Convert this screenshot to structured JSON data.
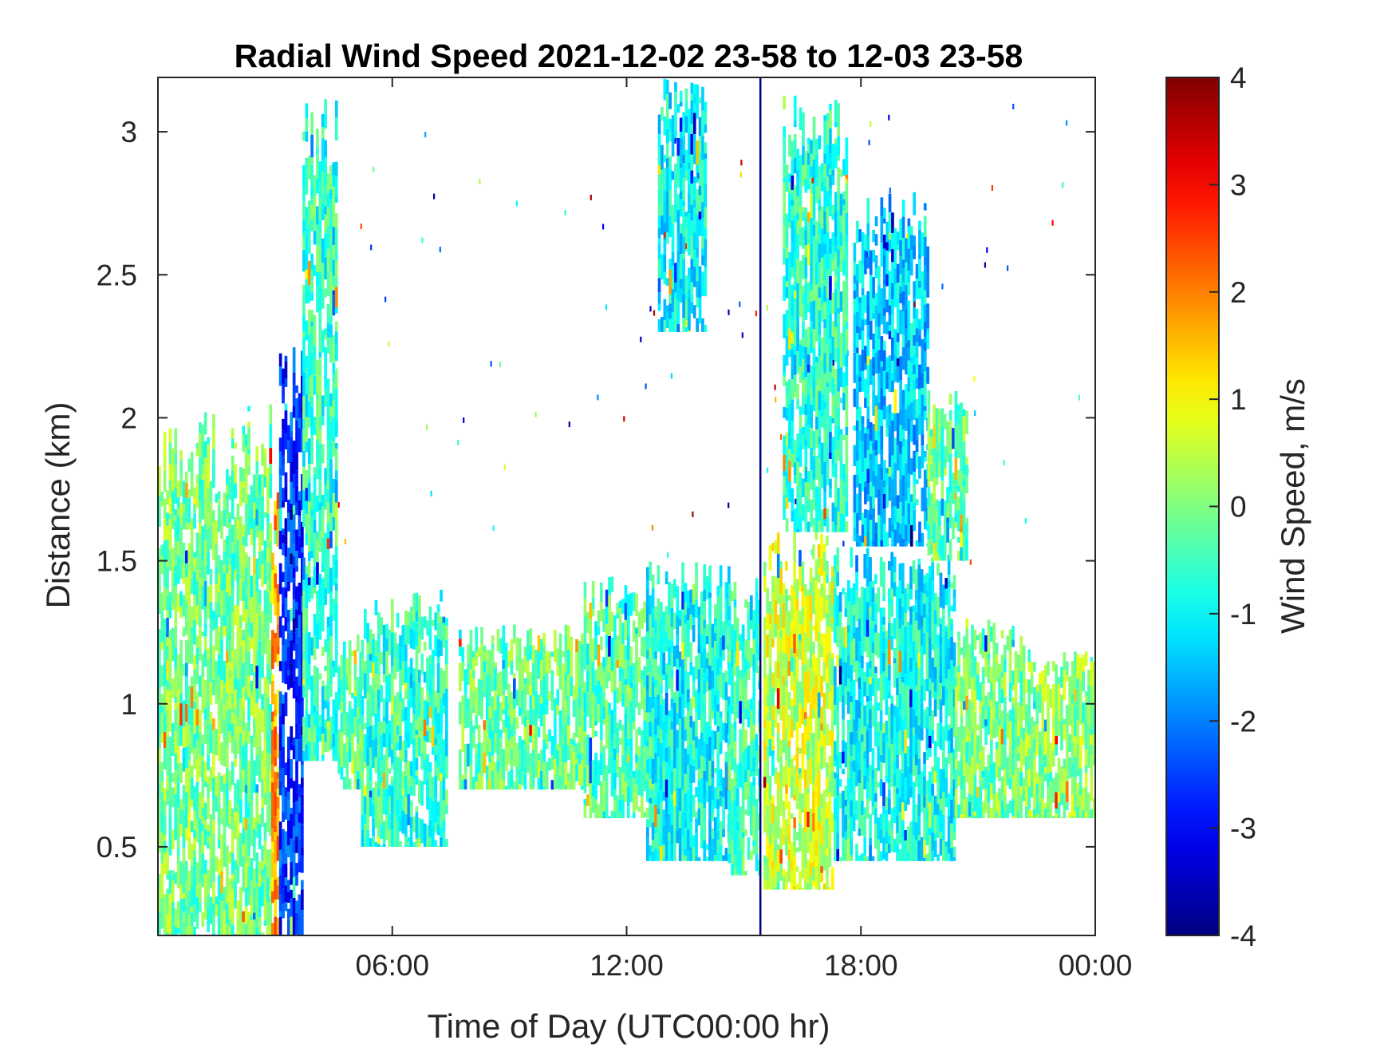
{
  "chart_data": {
    "type": "heatmap",
    "title": "Radial Wind Speed 2021-12-02 23-58 to 12-03 23-58",
    "xlabel": "Time of Day (UTC00:00 hr)",
    "ylabel": "Distance (km)",
    "colorbar_label": "Wind Speed, m/s",
    "colormap": "jet",
    "xlim": [
      "2021-12-02 23:58",
      "2021-12-03 23:58"
    ],
    "xlim_hours": [
      0,
      24
    ],
    "ylim": [
      0.19,
      3.19
    ],
    "clim": [
      -4,
      4
    ],
    "x_ticks": [
      {
        "hour": 6,
        "label": "06:00"
      },
      {
        "hour": 12,
        "label": "12:00"
      },
      {
        "hour": 18,
        "label": "18:00"
      },
      {
        "hour": 24,
        "label": "00:00"
      }
    ],
    "y_ticks": [
      {
        "value": 0.5,
        "label": "0.5"
      },
      {
        "value": 1,
        "label": "1"
      },
      {
        "value": 1.5,
        "label": "1.5"
      },
      {
        "value": 2,
        "label": "2"
      },
      {
        "value": 2.5,
        "label": "2.5"
      },
      {
        "value": 3,
        "label": "3"
      }
    ],
    "colorbar_ticks": [
      {
        "value": 4,
        "label": "4"
      },
      {
        "value": 3,
        "label": "3"
      },
      {
        "value": 2,
        "label": "2"
      },
      {
        "value": 1,
        "label": "1"
      },
      {
        "value": 0,
        "label": "0"
      },
      {
        "value": -1,
        "label": "-1"
      },
      {
        "value": -2,
        "label": "-2"
      },
      {
        "value": -3,
        "label": "-3"
      },
      {
        "value": -4,
        "label": "-4"
      }
    ],
    "regions": [
      {
        "t": [
          0.0,
          2.9
        ],
        "d": [
          0.19,
          2.05
        ],
        "v": -0.1
      },
      {
        "t": [
          2.9,
          3.1
        ],
        "d": [
          0.19,
          1.75
        ],
        "v": 1.8
      },
      {
        "t": [
          3.1,
          3.7
        ],
        "d": [
          0.19,
          2.3
        ],
        "v": -2.6
      },
      {
        "t": [
          3.7,
          4.6
        ],
        "d": [
          0.8,
          3.19
        ],
        "v": -0.6
      },
      {
        "t": [
          4.6,
          5.2
        ],
        "d": [
          0.7,
          1.25
        ],
        "v": -0.3
      },
      {
        "t": [
          5.2,
          7.4
        ],
        "d": [
          0.5,
          1.4
        ],
        "v": -0.6
      },
      {
        "t": [
          7.7,
          10.9
        ],
        "d": [
          0.7,
          1.28
        ],
        "v": -0.2
      },
      {
        "t": [
          10.9,
          12.7
        ],
        "d": [
          0.6,
          1.45
        ],
        "v": -0.4
      },
      {
        "t": [
          12.5,
          14.6
        ],
        "d": [
          0.45,
          1.5
        ],
        "v": -0.9
      },
      {
        "t": [
          12.8,
          14.0
        ],
        "d": [
          2.3,
          3.19
        ],
        "v": -1.0
      },
      {
        "t": [
          14.6,
          15.4
        ],
        "d": [
          0.4,
          1.45
        ],
        "v": -0.5
      },
      {
        "t": [
          15.4,
          15.45
        ],
        "d": [
          0.19,
          3.19
        ],
        "v": -4.0
      },
      {
        "t": [
          15.5,
          17.3
        ],
        "d": [
          0.35,
          1.65
        ],
        "v": 0.6
      },
      {
        "t": [
          16.0,
          17.6
        ],
        "d": [
          1.6,
          3.19
        ],
        "v": -0.7
      },
      {
        "t": [
          17.3,
          20.4
        ],
        "d": [
          0.45,
          1.55
        ],
        "v": -0.9
      },
      {
        "t": [
          17.8,
          19.7
        ],
        "d": [
          1.55,
          2.8
        ],
        "v": -1.4
      },
      {
        "t": [
          19.7,
          20.7
        ],
        "d": [
          1.5,
          2.1
        ],
        "v": -0.2
      },
      {
        "t": [
          20.4,
          22.2
        ],
        "d": [
          0.6,
          1.3
        ],
        "v": -0.1
      },
      {
        "t": [
          22.2,
          24.0
        ],
        "d": [
          0.6,
          1.2
        ],
        "v": 0.1
      }
    ]
  }
}
